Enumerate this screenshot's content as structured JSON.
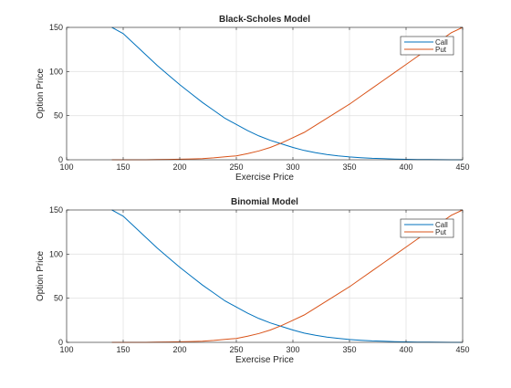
{
  "colors": {
    "call": "#0072bd",
    "put": "#d95319",
    "grid": "#e3e3e3",
    "axis": "#262626"
  },
  "chart_data": [
    {
      "type": "line",
      "title": "Black-Scholes Model",
      "xlabel": "Exercise Price",
      "ylabel": "Option Price",
      "xlim": [
        100,
        450
      ],
      "ylim": [
        0,
        150
      ],
      "xticks": [
        "100",
        "150",
        "200",
        "250",
        "300",
        "350",
        "400",
        "450"
      ],
      "yticks": [
        "0",
        "50",
        "100",
        "150"
      ],
      "grid": true,
      "legend_position": "top-right",
      "x": [
        140,
        150,
        160,
        170,
        180,
        190,
        200,
        210,
        220,
        230,
        240,
        250,
        260,
        270,
        280,
        290,
        300,
        310,
        320,
        330,
        340,
        350,
        360,
        370,
        380,
        390,
        400,
        410,
        420,
        430,
        440,
        450
      ],
      "series": [
        {
          "name": "Call",
          "color": "#0072bd",
          "values": [
            150,
            143,
            131,
            119,
            107,
            96,
            85,
            75,
            65,
            56,
            47,
            40,
            33,
            27,
            22,
            18,
            14,
            10.5,
            8,
            6,
            4.5,
            3.2,
            2.4,
            1.7,
            1.2,
            0.8,
            0.5,
            0.3,
            0.2,
            0.1,
            0.05,
            0
          ]
        },
        {
          "name": "Put",
          "color": "#d95319",
          "values": [
            0,
            0,
            0,
            0,
            0.2,
            0.4,
            0.6,
            0.9,
            1.3,
            2.2,
            3.3,
            4.4,
            7,
            10,
            14,
            19,
            25,
            31,
            39,
            47,
            55,
            63,
            72,
            81,
            90,
            99,
            108,
            117,
            126,
            135,
            144,
            150
          ]
        }
      ]
    },
    {
      "type": "line",
      "title": "Binomial Model",
      "xlabel": "Exercise Price",
      "ylabel": "Option Price",
      "xlim": [
        100,
        450
      ],
      "ylim": [
        0,
        150
      ],
      "xticks": [
        "100",
        "150",
        "200",
        "250",
        "300",
        "350",
        "400",
        "450"
      ],
      "yticks": [
        "0",
        "50",
        "100",
        "150"
      ],
      "grid": true,
      "legend_position": "top-right",
      "x": [
        140,
        150,
        160,
        170,
        180,
        190,
        200,
        210,
        220,
        230,
        240,
        250,
        260,
        270,
        280,
        290,
        300,
        310,
        320,
        330,
        340,
        350,
        360,
        370,
        380,
        390,
        400,
        410,
        420,
        430,
        440,
        450
      ],
      "series": [
        {
          "name": "Call",
          "color": "#0072bd",
          "values": [
            150,
            143,
            131,
            119,
            107,
            96,
            85,
            75,
            65,
            56,
            47,
            40,
            33,
            27,
            22,
            18,
            14,
            10.5,
            8,
            6,
            4.5,
            3.2,
            2.4,
            1.7,
            1.2,
            0.8,
            0.5,
            0.3,
            0.2,
            0.1,
            0.05,
            0
          ]
        },
        {
          "name": "Put",
          "color": "#d95319",
          "values": [
            0,
            0,
            0,
            0,
            0.2,
            0.4,
            0.6,
            0.9,
            1.3,
            2.2,
            3.3,
            4.4,
            7,
            10,
            14,
            19,
            25,
            31,
            39,
            47,
            55,
            63,
            72,
            81,
            90,
            99,
            108,
            117,
            126,
            135,
            144,
            150
          ]
        }
      ]
    }
  ]
}
